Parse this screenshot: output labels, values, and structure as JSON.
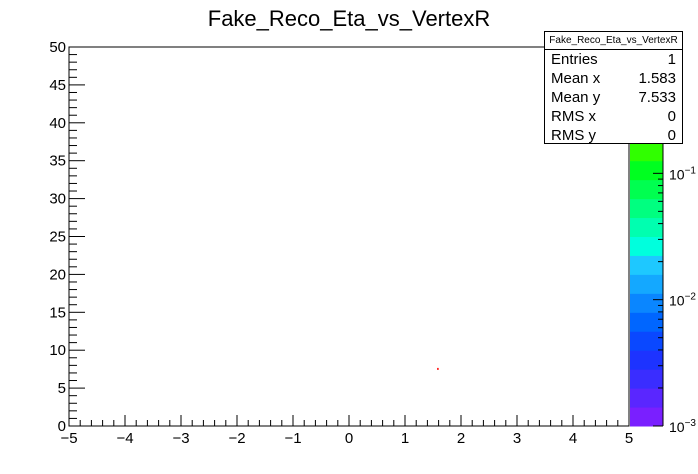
{
  "chart_data": {
    "type": "heatmap",
    "title": "Fake_Reco_Eta_vs_VertexR",
    "xlabel": "",
    "ylabel": "",
    "xlim": [
      -5,
      5
    ],
    "ylim": [
      0,
      50
    ],
    "x_ticks": [
      "−5",
      "−4",
      "−3",
      "−2",
      "−1",
      "0",
      "1",
      "2",
      "3",
      "4",
      "5"
    ],
    "y_ticks": [
      "0",
      "5",
      "10",
      "15",
      "20",
      "25",
      "30",
      "35",
      "40",
      "45",
      "50"
    ],
    "points": [
      {
        "x": 1.583,
        "y": 7.533,
        "weight": 1
      }
    ],
    "z_axis": {
      "scale": "log",
      "range": [
        0.001,
        1
      ],
      "tick_labels": [
        {
          "base": "10",
          "exp": "−3",
          "value": 0.001
        },
        {
          "base": "10",
          "exp": "−2",
          "value": 0.01
        },
        {
          "base": "10",
          "exp": "−1",
          "value": 0.1
        }
      ],
      "palette": [
        "#7a1fff",
        "#5a26ff",
        "#3a2dff",
        "#1d33ff",
        "#0a48ff",
        "#0066ff",
        "#0a86ff",
        "#14a8ff",
        "#1ec8ff",
        "#00ffdd",
        "#00ffb0",
        "#00ff80",
        "#00ff50",
        "#00ff20",
        "#30ff00",
        "#70ff00",
        "#a0ff00",
        "#d0ff00",
        "#ffff00",
        "#ffe000"
      ]
    },
    "stats": {
      "title": "Fake_Reco_Eta_vs_VertexR",
      "rows": [
        {
          "label": "Entries",
          "value": "1"
        },
        {
          "label": "Mean x",
          "value": "1.583"
        },
        {
          "label": "Mean y",
          "value": "7.533"
        },
        {
          "label": "RMS x",
          "value": "0"
        },
        {
          "label": "RMS y",
          "value": "0"
        }
      ]
    },
    "point_color": "#ff0000"
  }
}
